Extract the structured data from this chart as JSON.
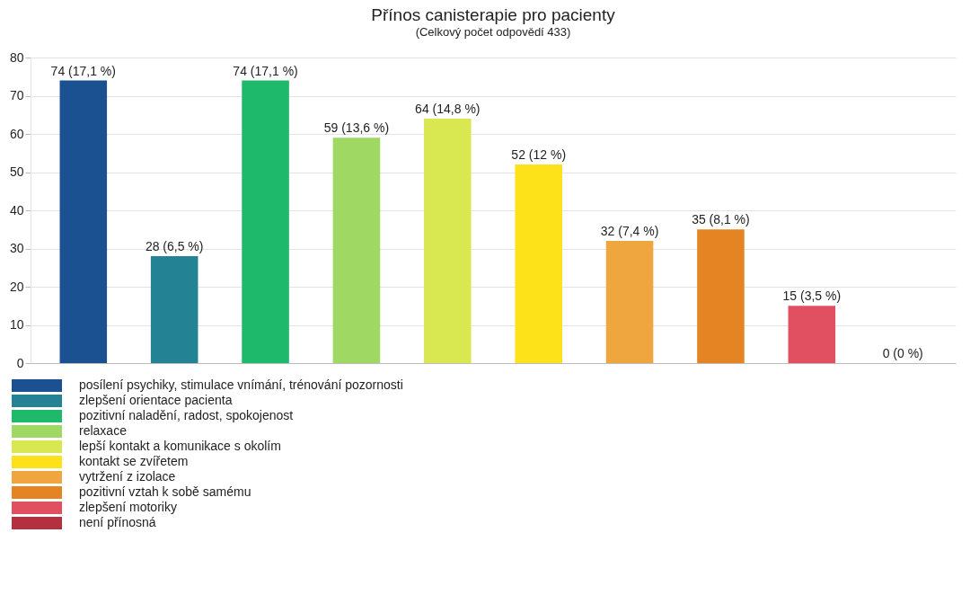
{
  "chart_data": {
    "type": "bar",
    "title": "Přínos canisterapie pro pacienty",
    "subtitle": "(Celkový počet odpovědí 433)",
    "categories": [
      null,
      null,
      null,
      null,
      null,
      null,
      null,
      null,
      null,
      null
    ],
    "ylim": [
      0,
      80
    ],
    "yticks": [
      0,
      10,
      20,
      30,
      40,
      50,
      60,
      70,
      80
    ],
    "grid": "y",
    "legend": "bottom left",
    "series": [
      {
        "name": "posílení psychiky, stimulace vnímání, trénování pozornosti",
        "color": "#1b5191",
        "values": [
          74,
          null,
          null,
          null,
          null,
          null,
          null,
          null,
          null,
          null
        ],
        "value_labels": [
          "74 (17,1 %)",
          null,
          null,
          null,
          null,
          null,
          null,
          null,
          null,
          null
        ]
      },
      {
        "name": "zlepšení orientace pacienta",
        "color": "#238294",
        "values": [
          null,
          28,
          null,
          null,
          null,
          null,
          null,
          null,
          null,
          null
        ],
        "value_labels": [
          null,
          "28 (6,5 %)",
          null,
          null,
          null,
          null,
          null,
          null,
          null,
          null
        ]
      },
      {
        "name": "pozitivní naladění, radost, spokojenost",
        "color": "#1fb96b",
        "values": [
          null,
          null,
          74,
          null,
          null,
          null,
          null,
          null,
          null,
          null
        ],
        "value_labels": [
          null,
          null,
          "74 (17,1 %)",
          null,
          null,
          null,
          null,
          null,
          null,
          null
        ]
      },
      {
        "name": "relaxace",
        "color": "#9fd863",
        "values": [
          null,
          null,
          null,
          59,
          null,
          null,
          null,
          null,
          null,
          null
        ],
        "value_labels": [
          null,
          null,
          null,
          "59 (13,6 %)",
          null,
          null,
          null,
          null,
          null,
          null
        ]
      },
      {
        "name": "lepší kontakt a komunikace s okolím",
        "color": "#d9e751",
        "values": [
          null,
          null,
          null,
          null,
          64,
          null,
          null,
          null,
          null,
          null
        ],
        "value_labels": [
          null,
          null,
          null,
          null,
          "64 (14,8 %)",
          null,
          null,
          null,
          null,
          null
        ]
      },
      {
        "name": "kontakt se zvířetem",
        "color": "#fde21a",
        "values": [
          null,
          null,
          null,
          null,
          null,
          52,
          null,
          null,
          null,
          null
        ],
        "value_labels": [
          null,
          null,
          null,
          null,
          null,
          "52 (12 %)",
          null,
          null,
          null,
          null
        ]
      },
      {
        "name": "vytržení z izolace",
        "color": "#efa63f",
        "values": [
          null,
          null,
          null,
          null,
          null,
          null,
          32,
          null,
          null,
          null
        ],
        "value_labels": [
          null,
          null,
          null,
          null,
          null,
          null,
          "32 (7,4 %)",
          null,
          null,
          null
        ]
      },
      {
        "name": "pozitivní vztah k sobě samému",
        "color": "#e48423",
        "values": [
          null,
          null,
          null,
          null,
          null,
          null,
          null,
          35,
          null,
          null
        ],
        "value_labels": [
          null,
          null,
          null,
          null,
          null,
          null,
          null,
          "35 (8,1 %)",
          null,
          null
        ]
      },
      {
        "name": "zlepšení motoriky",
        "color": "#e05060",
        "values": [
          null,
          null,
          null,
          null,
          null,
          null,
          null,
          null,
          15,
          null
        ],
        "value_labels": [
          null,
          null,
          null,
          null,
          null,
          null,
          null,
          null,
          "15 (3,5 %)",
          null
        ]
      },
      {
        "name": "není přínosná",
        "color": "#b5303f",
        "values": [
          null,
          null,
          null,
          null,
          null,
          null,
          null,
          null,
          null,
          0
        ],
        "value_labels": [
          null,
          null,
          null,
          null,
          null,
          null,
          null,
          null,
          null,
          "0 (0 %)"
        ]
      }
    ]
  }
}
